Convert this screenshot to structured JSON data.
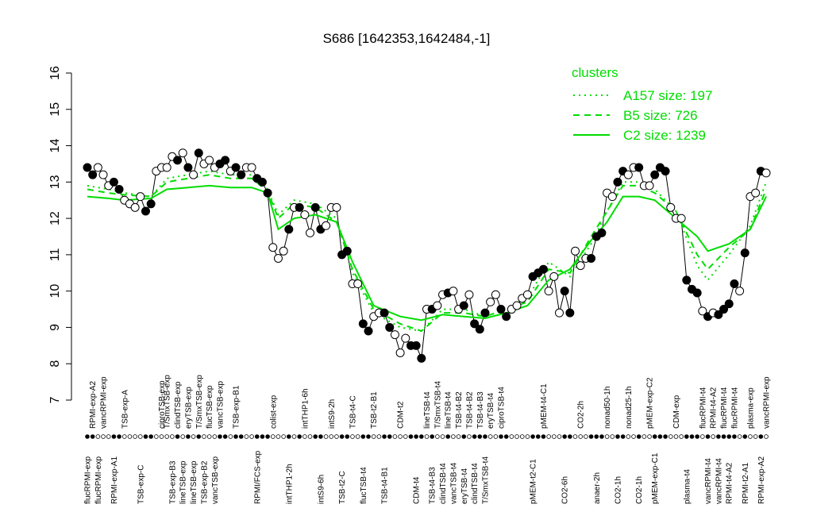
{
  "chart_data": {
    "type": "line",
    "title": "S686 [1642353,1642484,-1]",
    "ylim": [
      7,
      16
    ],
    "yticks": [
      7,
      8,
      9,
      10,
      11,
      12,
      13,
      14,
      15,
      16
    ],
    "series": [
      {
        "color": "#000000",
        "values": [
          13.4,
          13.2,
          13.4,
          13.2,
          12.9,
          13.0,
          12.8,
          12.5,
          12.4,
          12.3,
          12.6,
          12.2,
          12.4,
          13.3,
          13.4,
          13.4,
          13.7,
          13.6,
          13.8,
          13.4,
          13.2,
          13.8,
          13.5,
          13.6,
          13.4,
          13.5,
          13.6,
          13.3,
          13.4,
          13.2,
          13.4,
          13.4,
          13.1,
          13.0,
          12.7,
          11.2,
          10.9,
          11.1,
          11.7,
          12.3,
          12.3,
          12.1,
          11.6,
          12.3,
          11.7,
          11.8,
          12.3,
          12.3,
          11.0,
          11.1,
          10.2,
          10.2,
          9.1,
          8.9,
          9.3,
          9.4,
          9.4,
          9.0,
          8.8,
          8.3,
          8.7,
          8.5,
          8.5,
          8.15,
          9.5,
          9.5,
          9.6,
          9.9,
          9.95,
          10.0,
          9.5,
          9.6,
          9.9,
          9.1,
          8.95,
          9.4,
          9.7,
          9.9,
          9.5,
          9.3,
          9.5,
          9.6,
          9.8,
          9.9,
          10.4,
          10.5,
          10.6,
          10.0,
          10.4,
          9.4,
          10.0,
          9.4,
          11.1,
          10.7,
          10.9,
          10.9,
          11.5,
          11.6,
          12.7,
          12.6,
          13.0,
          13.3,
          13.2,
          13.4,
          13.4,
          12.9,
          12.9,
          13.2,
          13.4,
          13.3,
          12.3,
          12.0,
          12.0,
          10.3,
          10.05,
          9.95,
          9.45,
          9.3,
          9.4,
          9.35,
          9.5,
          9.65,
          10.2,
          10.0,
          11.05,
          12.6,
          12.7,
          13.3,
          13.25
        ],
        "filled": [
          true,
          true,
          false,
          false,
          false,
          true,
          true,
          false,
          false,
          false,
          false,
          true,
          true,
          false,
          false,
          false,
          false,
          true,
          false,
          true,
          false,
          true,
          false,
          false,
          false,
          true,
          true,
          false,
          true,
          true,
          false,
          false,
          true,
          true,
          true,
          false,
          false,
          false,
          true,
          false,
          true,
          false,
          false,
          true,
          true,
          false,
          false,
          false,
          true,
          true,
          false,
          false,
          true,
          true,
          false,
          false,
          true,
          true,
          false,
          false,
          false,
          true,
          true,
          true,
          false,
          true,
          false,
          false,
          true,
          false,
          false,
          true,
          false,
          true,
          true,
          true,
          false,
          false,
          true,
          true,
          false,
          false,
          false,
          false,
          true,
          true,
          true,
          false,
          false,
          false,
          true,
          true,
          false,
          false,
          false,
          true,
          true,
          true,
          false,
          false,
          true,
          true,
          false,
          false,
          true,
          false,
          false,
          true,
          true,
          true,
          false,
          false,
          false,
          true,
          true,
          true,
          false,
          true,
          false,
          true,
          true,
          true,
          true,
          false,
          true,
          false,
          false,
          true,
          false
        ]
      }
    ],
    "labels_top": [
      {
        "x": 2,
        "label": "RPMI-exp-A2"
      },
      {
        "x": 4,
        "label": "vancRPMI-exp"
      },
      {
        "x": 8,
        "label": "TSB-exp-A"
      },
      {
        "x": 15,
        "label": "ciproTSB-exp"
      },
      {
        "x": 16,
        "label": "T/SmxTSB-exp"
      },
      {
        "x": 18,
        "label": "clindTSB-exp"
      },
      {
        "x": 20,
        "label": "eryTSB-exp"
      },
      {
        "x": 22,
        "label": "T/SmxTSB-exp"
      },
      {
        "x": 24,
        "label": "flucTSB-exp"
      },
      {
        "x": 26,
        "label": "vancTSB-exp"
      },
      {
        "x": 29,
        "label": "TSB-exp-B1"
      },
      {
        "x": 36,
        "label": "colist-exp"
      },
      {
        "x": 42,
        "label": "intTHP1-6h"
      },
      {
        "x": 47,
        "label": "intS9-2h"
      },
      {
        "x": 51,
        "label": "TSB-t4-C"
      },
      {
        "x": 55,
        "label": "TSB-t2-B1"
      },
      {
        "x": 60,
        "label": "CDM-t2"
      },
      {
        "x": 65,
        "label": "lineTSB-t4"
      },
      {
        "x": 67,
        "label": "T/SmxTSB-t4"
      },
      {
        "x": 69,
        "label": "lineTSB-t4"
      },
      {
        "x": 71,
        "label": "TSB-t4-B2"
      },
      {
        "x": 73,
        "label": "TSB-t4-B2"
      },
      {
        "x": 75,
        "label": "TSB-t4-B3"
      },
      {
        "x": 77,
        "label": "eryTSB-t4"
      },
      {
        "x": 79,
        "label": "ciproTSB-t4"
      },
      {
        "x": 87,
        "label": "pMEM-t4-C1"
      },
      {
        "x": 94,
        "label": "CO2-2h"
      },
      {
        "x": 99,
        "label": "nonad50-1h"
      },
      {
        "x": 103,
        "label": "nonad25-1h"
      },
      {
        "x": 107,
        "label": "pMEM-exp-C2"
      },
      {
        "x": 112,
        "label": "CDM-exp"
      },
      {
        "x": 117,
        "label": "flucRPMI-t4"
      },
      {
        "x": 119,
        "label": "RPMI-t4-A2"
      },
      {
        "x": 121,
        "label": "flucRPMI-t4"
      },
      {
        "x": 123,
        "label": "flucRPMI-t4"
      },
      {
        "x": 126,
        "label": "plasma-exp"
      },
      {
        "x": 129,
        "label": "vancRPMI-exp"
      }
    ],
    "labels_bottom": [
      {
        "x": 1,
        "label": "flucRPMI-exp"
      },
      {
        "x": 3,
        "label": "flucRPMI-exp"
      },
      {
        "x": 6,
        "label": "RPMI-exp-A1"
      },
      {
        "x": 11,
        "label": "TSB-exp-C"
      },
      {
        "x": 17,
        "label": "TSB-exp-B3"
      },
      {
        "x": 19,
        "label": "lineTSB-exp"
      },
      {
        "x": 21,
        "label": "lineTSB-exp"
      },
      {
        "x": 23,
        "label": "TSB-exp-B2"
      },
      {
        "x": 25,
        "label": "vancTSB-exp"
      },
      {
        "x": 33,
        "label": "RPMI/FCS-exp"
      },
      {
        "x": 39,
        "label": "intTHP1-2h"
      },
      {
        "x": 45,
        "label": "intS9-6h"
      },
      {
        "x": 49,
        "label": "TSB-t2-C"
      },
      {
        "x": 53,
        "label": "flucTSB-t4"
      },
      {
        "x": 57,
        "label": "TSB-t4-B1"
      },
      {
        "x": 63,
        "label": "CDM-t4"
      },
      {
        "x": 66,
        "label": "TSB-t4-B3"
      },
      {
        "x": 68,
        "label": "clindTSB-t4"
      },
      {
        "x": 70,
        "label": "vancTSB-t4"
      },
      {
        "x": 72,
        "label": "eryTSB-t4"
      },
      {
        "x": 74,
        "label": "clindTSB-t4"
      },
      {
        "x": 76,
        "label": "T/SmxTSB-t4"
      },
      {
        "x": 85,
        "label": "pMEM-t2-C1"
      },
      {
        "x": 91,
        "label": "CO2-6h"
      },
      {
        "x": 97,
        "label": "anaer-2h"
      },
      {
        "x": 101,
        "label": "CO2-1h"
      },
      {
        "x": 105,
        "label": "CO2-1h"
      },
      {
        "x": 108,
        "label": "pMEM-exp-C1"
      },
      {
        "x": 114,
        "label": "plasma-t4"
      },
      {
        "x": 118,
        "label": "vancRPMI-t4"
      },
      {
        "x": 120,
        "label": "vancRPMI-t4"
      },
      {
        "x": 122,
        "label": "RPMI-t4-A2"
      },
      {
        "x": 125,
        "label": "RPMI-t2-A1"
      },
      {
        "x": 128,
        "label": "RPMI-exp-A2"
      }
    ],
    "clusters": {
      "title": "clusters",
      "color": "#00dd00",
      "legend": "top-right",
      "x": [
        1,
        5,
        8,
        13,
        16,
        20,
        24,
        28,
        32,
        35,
        37,
        40,
        44,
        48,
        51,
        55,
        60,
        64,
        68,
        72,
        76,
        80,
        84,
        88,
        92,
        96,
        99,
        102,
        105,
        108,
        112,
        116,
        118,
        122,
        126,
        129
      ],
      "series": [
        {
          "name": "A157 size: 197",
          "dash": "dotted",
          "values": [
            12.9,
            12.8,
            12.7,
            12.6,
            13.1,
            13.2,
            13.3,
            13.2,
            13.2,
            12.8,
            12.1,
            12.5,
            12.4,
            12.0,
            10.5,
            9.4,
            9.0,
            8.9,
            9.5,
            9.5,
            9.3,
            9.5,
            9.8,
            10.8,
            10.4,
            11.3,
            12.2,
            13.0,
            13.0,
            12.8,
            12.2,
            10.7,
            10.3,
            11.0,
            11.8,
            13.0
          ]
        },
        {
          "name": "B5 size: 726",
          "dash": "dashed",
          "values": [
            12.8,
            12.7,
            12.65,
            12.6,
            13.0,
            13.1,
            13.2,
            13.1,
            13.1,
            12.75,
            12.0,
            12.4,
            12.3,
            11.9,
            10.6,
            9.5,
            9.1,
            8.9,
            9.4,
            9.4,
            9.3,
            9.5,
            9.7,
            10.6,
            10.5,
            11.5,
            12.2,
            12.9,
            12.9,
            12.7,
            12.2,
            11.0,
            10.6,
            11.2,
            11.7,
            12.8
          ]
        },
        {
          "name": "C2 size: 1239",
          "dash": "solid",
          "values": [
            12.6,
            12.55,
            12.5,
            12.55,
            12.8,
            12.85,
            12.9,
            12.85,
            12.85,
            12.7,
            11.7,
            12.0,
            12.1,
            11.9,
            10.8,
            9.6,
            9.3,
            9.2,
            9.35,
            9.3,
            9.25,
            9.4,
            9.6,
            10.3,
            10.6,
            11.4,
            11.9,
            12.6,
            12.6,
            12.5,
            12.0,
            11.5,
            11.1,
            11.3,
            11.7,
            12.6
          ]
        }
      ]
    }
  }
}
